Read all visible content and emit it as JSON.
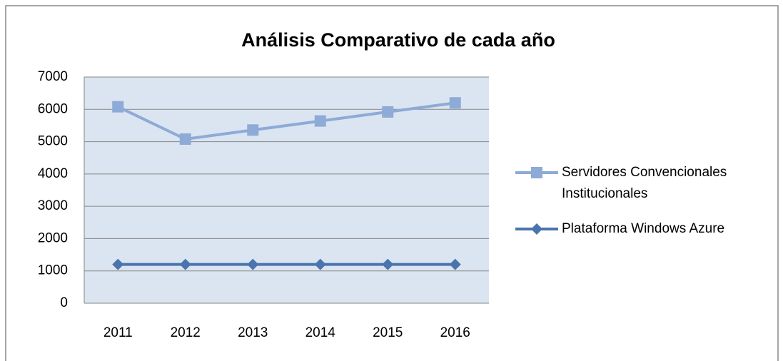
{
  "chart_data": {
    "type": "line",
    "title": "Análisis Comparativo de cada año",
    "categories": [
      "2011",
      "2012",
      "2013",
      "2014",
      "2015",
      "2016"
    ],
    "series": [
      {
        "name": "Servidores Convencionales Institucionales",
        "color": "#8eaad6",
        "marker": "square",
        "values": [
          6080,
          5080,
          5360,
          5640,
          5920,
          6200
        ]
      },
      {
        "name": "Plataforma Windows Azure",
        "color": "#4a74ad",
        "marker": "diamond",
        "values": [
          1200,
          1200,
          1200,
          1200,
          1200,
          1200
        ]
      }
    ],
    "ylim": [
      0,
      7000
    ],
    "yticks": [
      0,
      1000,
      2000,
      3000,
      4000,
      5000,
      6000,
      7000
    ],
    "grid": true,
    "legend": "right"
  }
}
